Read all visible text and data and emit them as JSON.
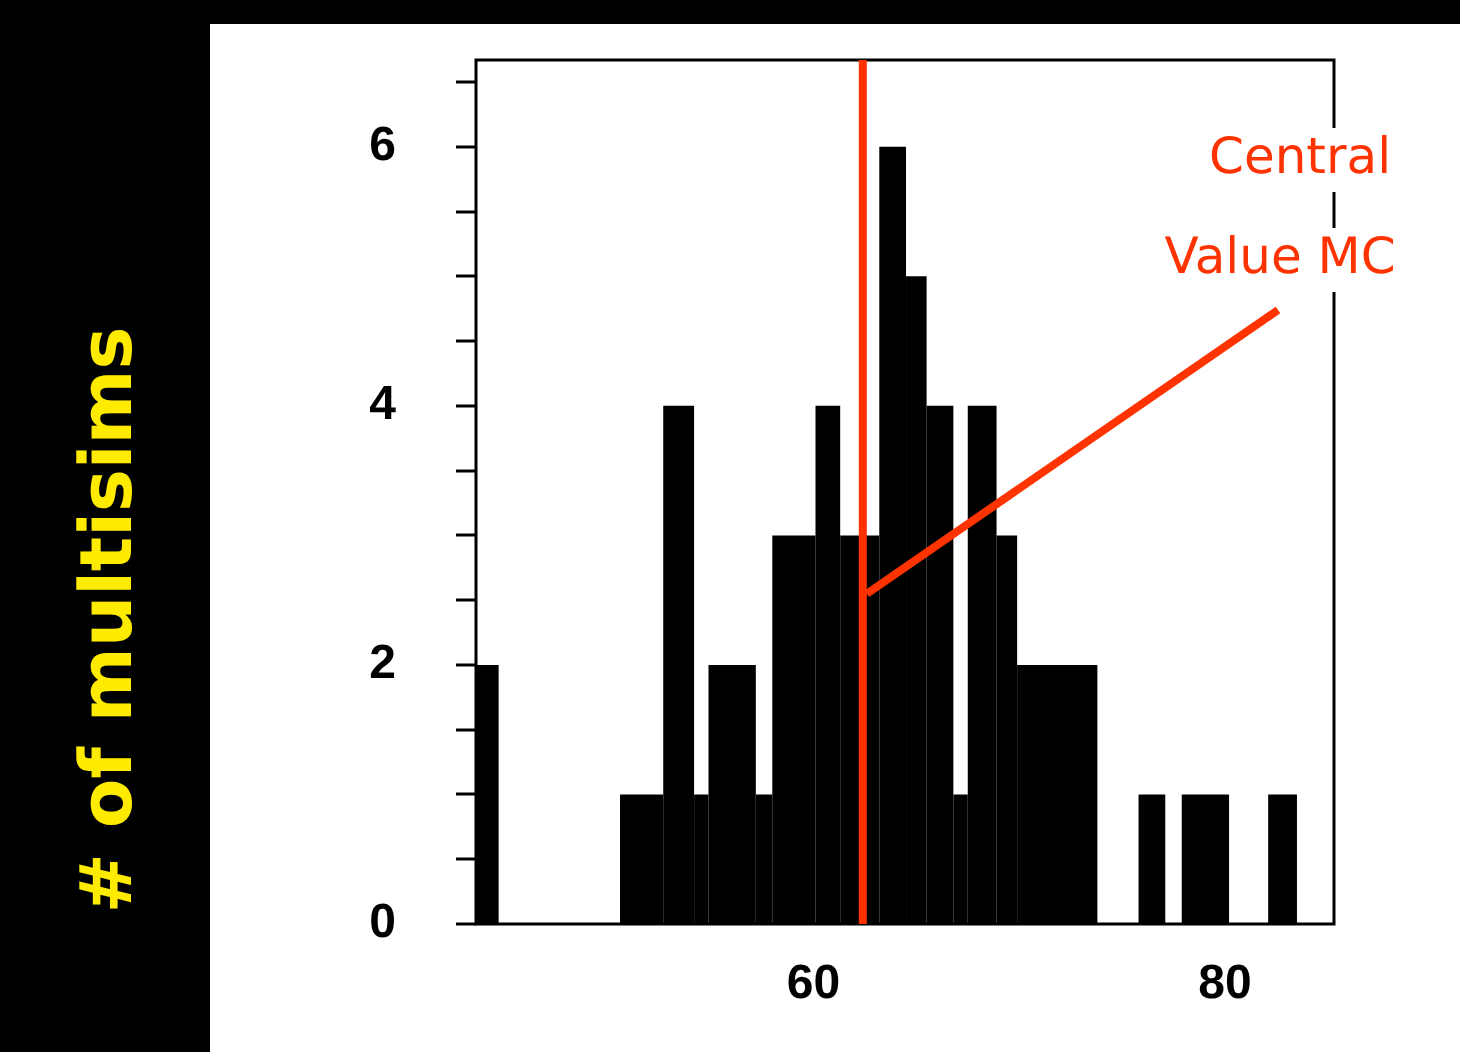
{
  "chart_data": {
    "type": "histogram",
    "ylabel": "# of multisims",
    "bins": [
      43.6,
      44.7,
      50.6,
      52.7,
      54.2,
      54.9,
      57.2,
      58.0,
      60.1,
      61.3,
      63.2,
      64.5,
      65.5,
      66.8,
      67.5,
      68.9,
      69.9,
      73.8,
      75.8,
      77.1,
      77.9,
      80.2,
      82.1,
      83.5
    ],
    "values": [
      2,
      0,
      1,
      4,
      1,
      2,
      1,
      3,
      4,
      3,
      6,
      5,
      4,
      1,
      4,
      3,
      2,
      0,
      1,
      0,
      1,
      0,
      1
    ],
    "color": "#000000",
    "xlim": [
      43.6,
      85.3
    ],
    "xticks": [
      60,
      80
    ],
    "ylim": [
      0,
      6.67
    ],
    "yticks": [
      0,
      {
        "value": 0.5,
        "label": null
      },
      {
        "value": 1,
        "label": null
      },
      {
        "value": 1.5,
        "label": null
      },
      2,
      {
        "value": 2.5,
        "label": null
      },
      {
        "value": 3,
        "label": null
      },
      {
        "value": 3.5,
        "label": null
      },
      4,
      {
        "value": 4.5,
        "label": null
      },
      {
        "value": 5,
        "label": null
      },
      {
        "value": 5.5,
        "label": null
      },
      6,
      {
        "value": 6.5,
        "label": null
      }
    ],
    "ref_lines": [
      {
        "axis": "x",
        "value": 62.4,
        "color": "#ff3300"
      }
    ],
    "annotations": [
      {
        "text": "Central Value MC",
        "x": 62.4,
        "y": 2.55
      }
    ]
  }
}
